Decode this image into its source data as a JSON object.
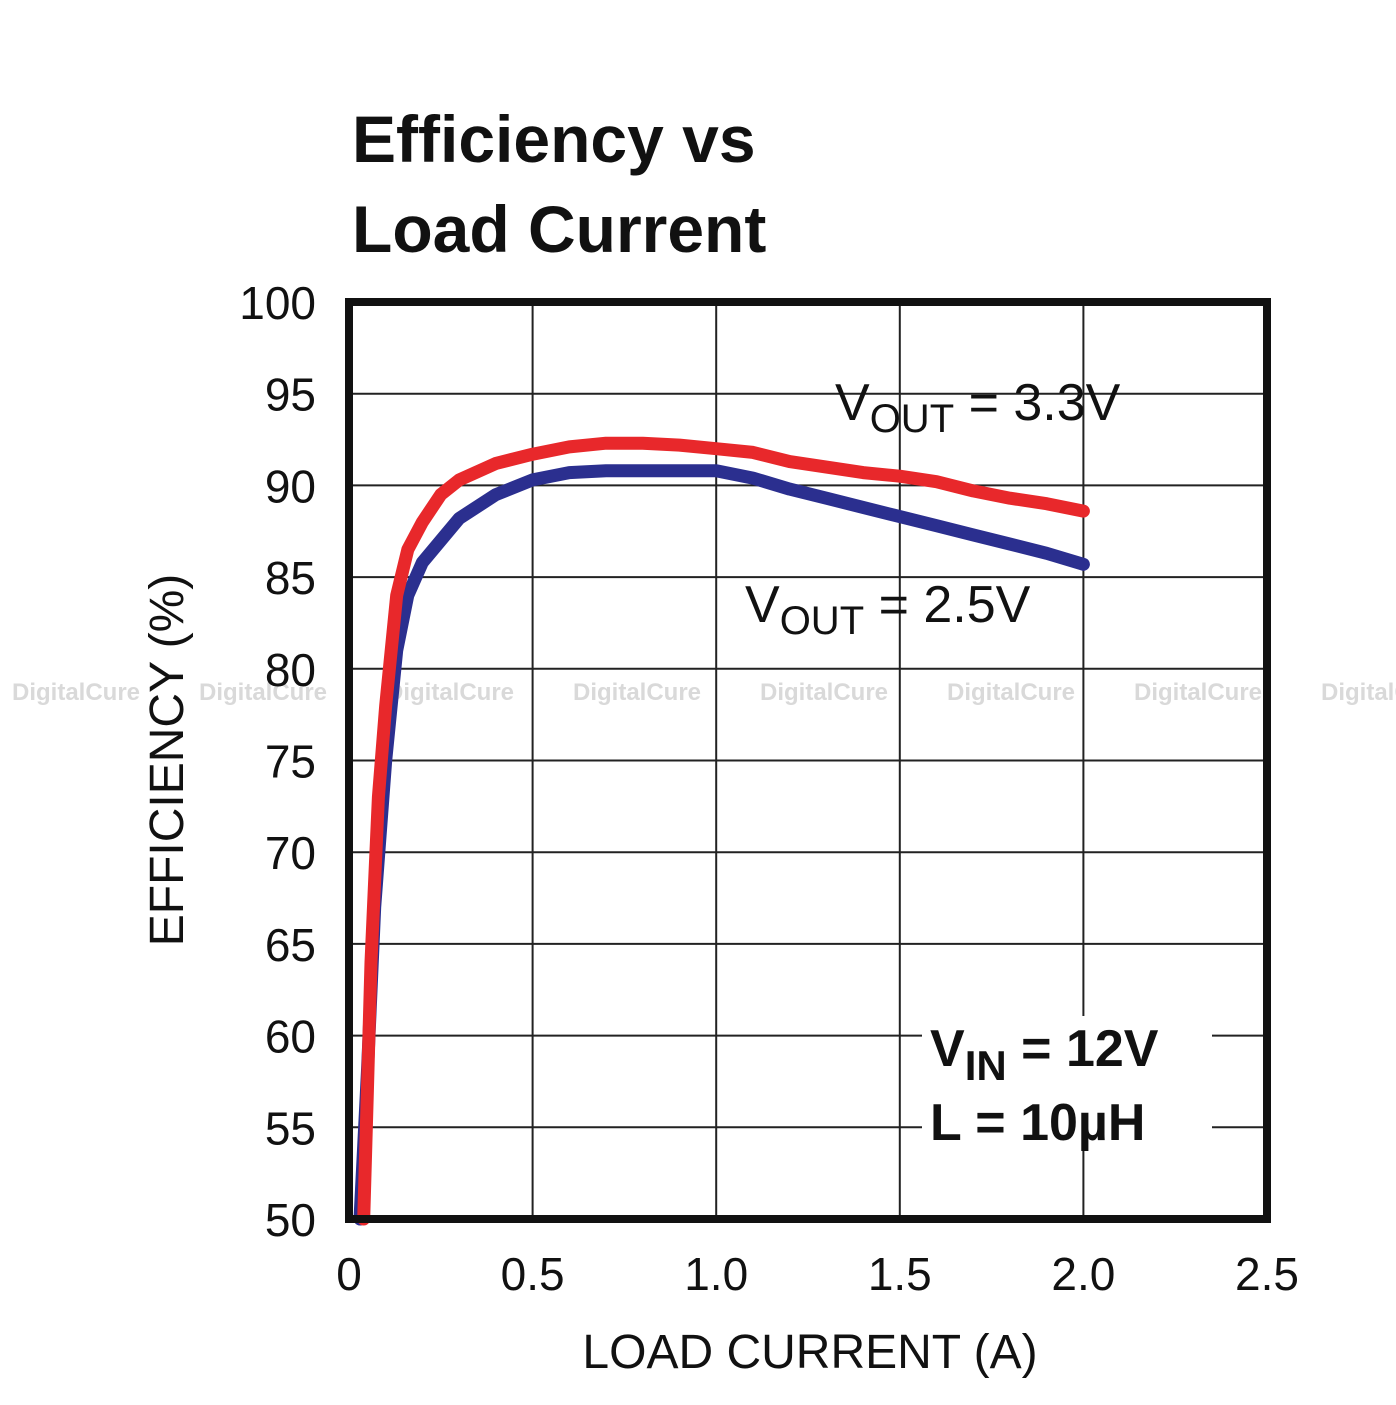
{
  "chart_data": {
    "type": "line",
    "title_lines": [
      "Efficiency vs",
      "Load Current"
    ],
    "xlabel": "LOAD CURRENT (A)",
    "ylabel": "EFFICIENCY (%)",
    "xlim": [
      0,
      2.5
    ],
    "ylim": [
      50,
      100
    ],
    "x_ticks": [
      0,
      0.5,
      1.0,
      1.5,
      2.0,
      2.5
    ],
    "x_tick_labels": [
      "0",
      "0.5",
      "1.0",
      "1.5",
      "2.0",
      "2.5"
    ],
    "y_ticks": [
      50,
      55,
      60,
      65,
      70,
      75,
      80,
      85,
      90,
      95,
      100
    ],
    "y_tick_labels": [
      "50",
      "55",
      "60",
      "65",
      "70",
      "75",
      "80",
      "85",
      "90",
      "95",
      "100"
    ],
    "grid": true,
    "series": [
      {
        "label_main": "V",
        "label_sub": "OUT",
        "label_rest": " = 3.3V",
        "color": "#e8282b",
        "x": [
          0.04,
          0.05,
          0.06,
          0.08,
          0.1,
          0.13,
          0.16,
          0.2,
          0.25,
          0.3,
          0.4,
          0.5,
          0.6,
          0.7,
          0.8,
          0.9,
          1.0,
          1.1,
          1.2,
          1.3,
          1.4,
          1.5,
          1.6,
          1.7,
          1.8,
          1.9,
          2.0
        ],
        "y": [
          50,
          57,
          64,
          73,
          78,
          84,
          86.5,
          88,
          89.5,
          90.3,
          91.2,
          91.7,
          92.1,
          92.3,
          92.3,
          92.2,
          92.0,
          91.8,
          91.3,
          91.0,
          90.7,
          90.5,
          90.2,
          89.7,
          89.3,
          89.0,
          88.6
        ]
      },
      {
        "label_main": "V",
        "label_sub": "OUT",
        "label_rest": " = 2.5V",
        "color": "#2b2f8f",
        "x": [
          0.03,
          0.05,
          0.07,
          0.1,
          0.13,
          0.16,
          0.2,
          0.25,
          0.3,
          0.4,
          0.5,
          0.6,
          0.7,
          0.8,
          0.9,
          1.0,
          1.1,
          1.2,
          1.3,
          1.4,
          1.5,
          1.6,
          1.7,
          1.8,
          1.9,
          2.0
        ],
        "y": [
          50,
          58,
          67,
          75,
          81,
          84,
          85.8,
          87,
          88.2,
          89.5,
          90.3,
          90.7,
          90.8,
          90.8,
          90.8,
          90.8,
          90.4,
          89.8,
          89.3,
          88.8,
          88.3,
          87.8,
          87.3,
          86.8,
          86.3,
          85.7
        ]
      }
    ],
    "conditions": [
      {
        "main": "V",
        "sub": "IN",
        "rest": " = 12V"
      },
      {
        "main": "L = 10µH",
        "sub": "",
        "rest": ""
      }
    ],
    "watermark": "DigitalCure",
    "colors": {
      "frame": "#111111",
      "grid": "#222222",
      "background": "#ffffff"
    }
  }
}
